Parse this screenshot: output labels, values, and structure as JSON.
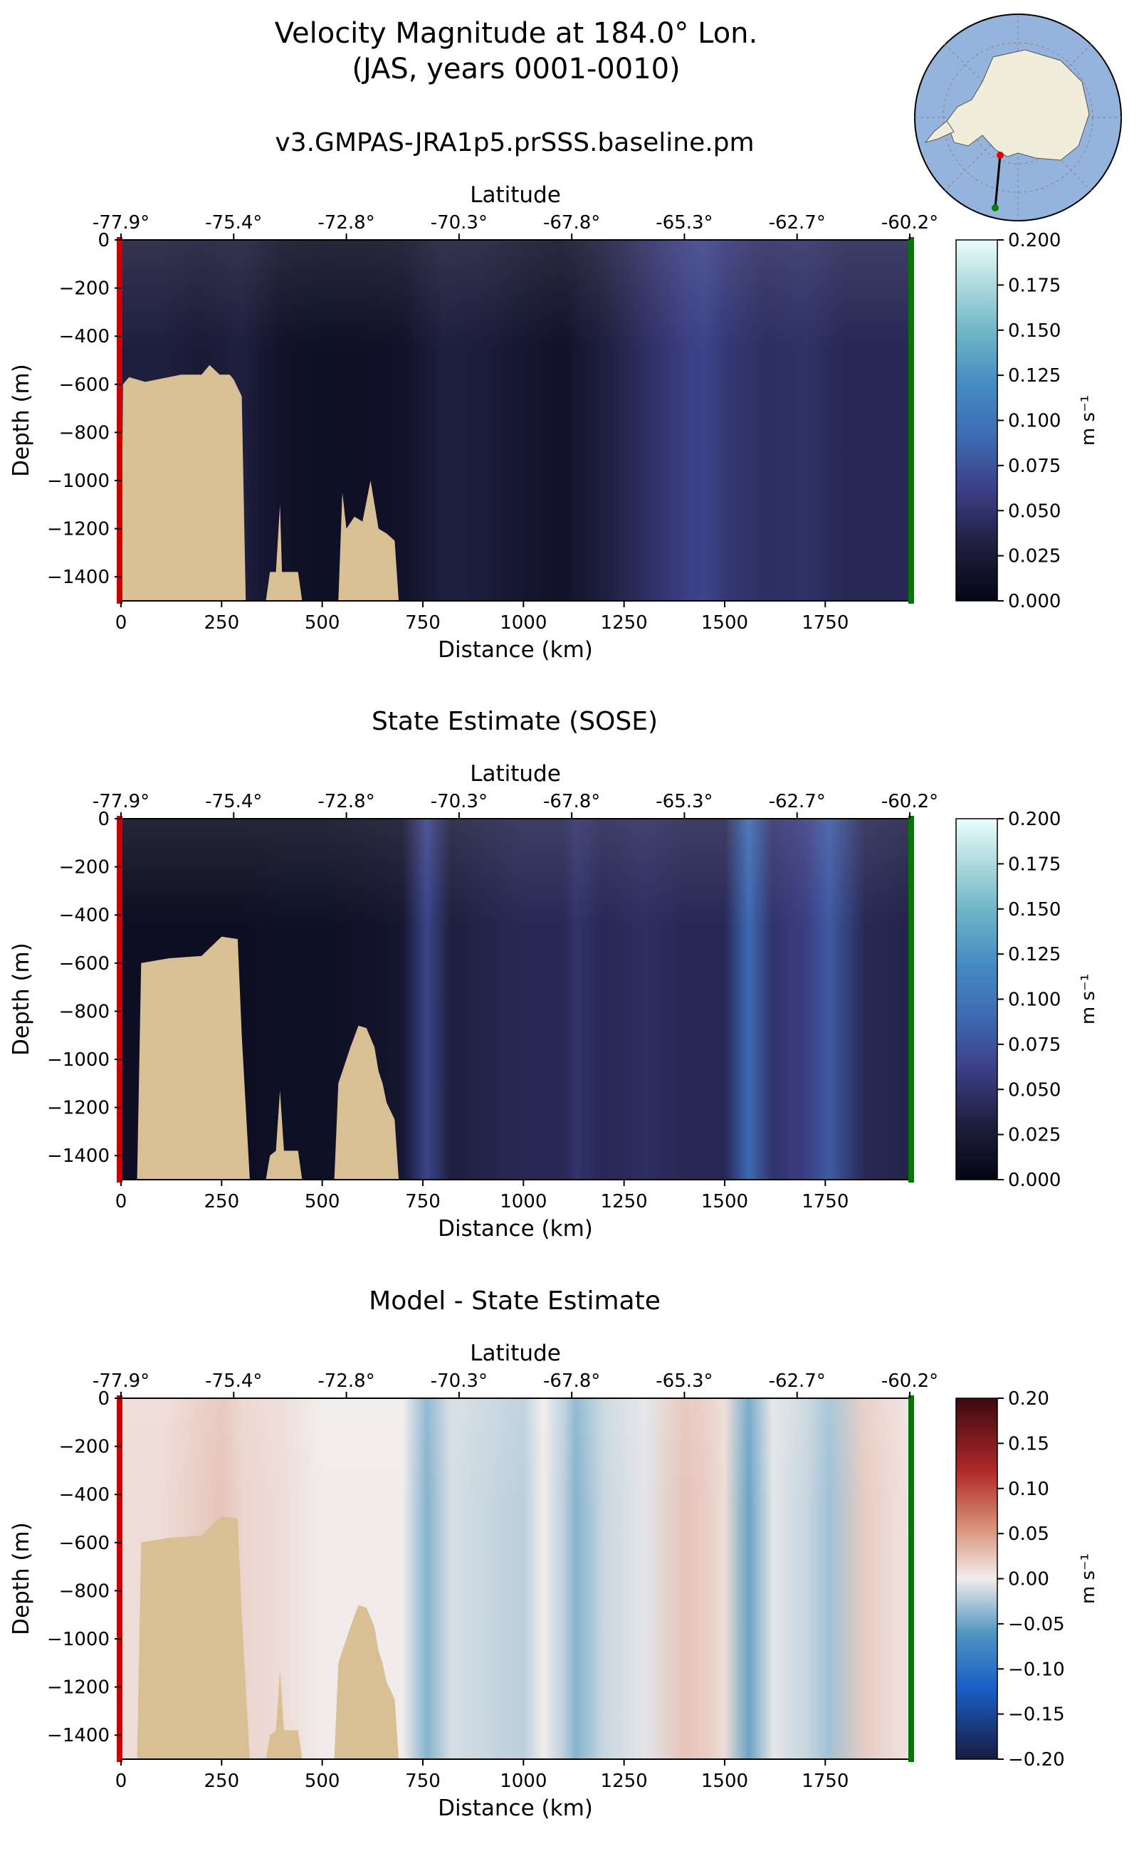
{
  "figure": {
    "title": "Velocity Magnitude at 184.0° Lon.",
    "subtitle": "(JAS, years 0001-0010)",
    "inset_map": {
      "description_icon": "antarctica-map-icon",
      "colors": {
        "ocean": "#95b4dd",
        "land": "#f0eedb",
        "transect": "#000000",
        "start_marker": "#e00000",
        "end_marker": "#008000"
      }
    }
  },
  "chart_data": [
    {
      "type": "heatmap",
      "title": "v3.GMPAS-JRA1p5.prSSS.baseline.pm",
      "xlabel": "Distance (km)",
      "ylabel": "Depth (m)",
      "top_xlabel": "Latitude",
      "xlim": [
        0,
        1960
      ],
      "ylim": [
        -1500,
        0
      ],
      "x_ticks": [
        0,
        250,
        500,
        750,
        1000,
        1250,
        1500,
        1750
      ],
      "y_ticks": [
        0,
        -200,
        -400,
        -600,
        -800,
        -1000,
        -1200,
        -1400
      ],
      "latitude_ticks": [
        "-77.9°",
        "-75.4°",
        "-72.8°",
        "-70.3°",
        "-67.8°",
        "-65.3°",
        "-62.7°",
        "-60.2°"
      ],
      "colormap": "ice",
      "colorbar": {
        "label": "m s⁻¹",
        "vmin": 0.0,
        "vmax": 0.2,
        "ticks": [
          "0.000",
          "0.025",
          "0.050",
          "0.075",
          "0.100",
          "0.125",
          "0.150",
          "0.175",
          "0.200"
        ]
      },
      "velocity_profile": {
        "distance_km": [
          0,
          100,
          200,
          300,
          400,
          500,
          600,
          700,
          800,
          900,
          1000,
          1100,
          1200,
          1300,
          1400,
          1450,
          1500,
          1600,
          1700,
          1800,
          1900,
          1960
        ],
        "magnitude": [
          0.03,
          0.03,
          0.025,
          0.03,
          0.015,
          0.012,
          0.013,
          0.015,
          0.03,
          0.028,
          0.02,
          0.015,
          0.03,
          0.045,
          0.06,
          0.065,
          0.055,
          0.045,
          0.048,
          0.04,
          0.04,
          0.04
        ]
      },
      "bathymetry": {
        "distance_km": [
          0,
          5,
          20,
          60,
          150,
          200,
          220,
          245,
          270,
          280,
          300,
          310,
          360,
          370,
          385,
          395,
          400,
          420,
          440,
          450,
          540,
          550,
          560,
          580,
          600,
          620,
          640,
          660,
          680,
          690
        ],
        "depth_m": [
          -1500,
          -600,
          -570,
          -590,
          -560,
          -560,
          -520,
          -560,
          -560,
          -580,
          -650,
          -1500,
          -1500,
          -1380,
          -1380,
          -1100,
          -1380,
          -1380,
          -1380,
          -1500,
          -1500,
          -1050,
          -1200,
          -1150,
          -1170,
          -1000,
          -1200,
          -1220,
          -1250,
          -1500
        ]
      },
      "section_markers": {
        "start_color": "#cc0000",
        "end_color": "#007700"
      }
    },
    {
      "type": "heatmap",
      "title": "State Estimate (SOSE)",
      "xlabel": "Distance (km)",
      "ylabel": "Depth (m)",
      "top_xlabel": "Latitude",
      "xlim": [
        0,
        1960
      ],
      "ylim": [
        -1500,
        0
      ],
      "x_ticks": [
        0,
        250,
        500,
        750,
        1000,
        1250,
        1500,
        1750
      ],
      "y_ticks": [
        0,
        -200,
        -400,
        -600,
        -800,
        -1000,
        -1200,
        -1400
      ],
      "latitude_ticks": [
        "-77.9°",
        "-75.4°",
        "-72.8°",
        "-70.3°",
        "-67.8°",
        "-65.3°",
        "-62.7°",
        "-60.2°"
      ],
      "colormap": "ice",
      "colorbar": {
        "label": "m s⁻¹",
        "vmin": 0.0,
        "vmax": 0.2,
        "ticks": [
          "0.000",
          "0.025",
          "0.050",
          "0.075",
          "0.100",
          "0.125",
          "0.150",
          "0.175",
          "0.200"
        ]
      },
      "velocity_profile": {
        "distance_km": [
          0,
          100,
          200,
          300,
          400,
          500,
          600,
          700,
          760,
          820,
          900,
          1000,
          1100,
          1130,
          1200,
          1300,
          1400,
          1500,
          1560,
          1620,
          1700,
          1760,
          1850,
          1960
        ],
        "magnitude": [
          0.01,
          0.01,
          0.01,
          0.01,
          0.012,
          0.012,
          0.015,
          0.02,
          0.065,
          0.03,
          0.035,
          0.04,
          0.04,
          0.05,
          0.04,
          0.045,
          0.04,
          0.04,
          0.09,
          0.05,
          0.06,
          0.08,
          0.04,
          0.035
        ]
      },
      "bathymetry": {
        "distance_km": [
          0,
          40,
          50,
          120,
          200,
          250,
          290,
          300,
          320,
          360,
          370,
          385,
          395,
          405,
          420,
          440,
          450,
          530,
          540,
          570,
          590,
          610,
          630,
          640,
          650,
          660,
          680,
          690
        ],
        "depth_m": [
          -1500,
          -1500,
          -600,
          -580,
          -570,
          -490,
          -500,
          -900,
          -1500,
          -1500,
          -1400,
          -1380,
          -1130,
          -1380,
          -1380,
          -1380,
          -1500,
          -1500,
          -1100,
          -950,
          -860,
          -870,
          -950,
          -1050,
          -1100,
          -1180,
          -1250,
          -1500
        ]
      },
      "section_markers": {
        "start_color": "#cc0000",
        "end_color": "#007700"
      }
    },
    {
      "type": "heatmap",
      "title": "Model - State Estimate",
      "xlabel": "Distance (km)",
      "ylabel": "Depth (m)",
      "top_xlabel": "Latitude",
      "xlim": [
        0,
        1960
      ],
      "ylim": [
        -1500,
        0
      ],
      "x_ticks": [
        0,
        250,
        500,
        750,
        1000,
        1250,
        1500,
        1750
      ],
      "y_ticks": [
        0,
        -200,
        -400,
        -600,
        -800,
        -1000,
        -1200,
        -1400
      ],
      "latitude_ticks": [
        "-77.9°",
        "-75.4°",
        "-72.8°",
        "-70.3°",
        "-67.8°",
        "-65.3°",
        "-62.7°",
        "-60.2°"
      ],
      "colormap": "balance",
      "colorbar": {
        "label": "m s⁻¹",
        "vmin": -0.2,
        "vmax": 0.2,
        "ticks": [
          "−0.20",
          "−0.15",
          "−0.10",
          "−0.05",
          "0.00",
          "0.05",
          "0.10",
          "0.15",
          "0.20"
        ]
      },
      "velocity_profile": {
        "distance_km": [
          0,
          100,
          200,
          250,
          300,
          400,
          500,
          600,
          700,
          760,
          820,
          900,
          1000,
          1050,
          1100,
          1130,
          1200,
          1300,
          1400,
          1450,
          1500,
          1560,
          1620,
          1700,
          1760,
          1850,
          1960
        ],
        "magnitude": [
          0.01,
          0.01,
          0.02,
          0.025,
          0.015,
          0.01,
          0.0,
          0.0,
          0.0,
          -0.04,
          -0.01,
          -0.015,
          -0.02,
          0.0,
          -0.02,
          -0.04,
          -0.015,
          -0.005,
          0.025,
          0.02,
          0.01,
          -0.05,
          -0.005,
          -0.015,
          -0.03,
          0.02,
          0.005
        ]
      },
      "bathymetry": {
        "distance_km": [
          0,
          40,
          50,
          120,
          200,
          250,
          290,
          300,
          320,
          360,
          370,
          385,
          395,
          405,
          420,
          440,
          450,
          530,
          540,
          570,
          590,
          610,
          630,
          640,
          650,
          660,
          680,
          690
        ],
        "depth_m": [
          -1500,
          -1500,
          -600,
          -580,
          -570,
          -490,
          -500,
          -900,
          -1500,
          -1500,
          -1400,
          -1380,
          -1130,
          -1380,
          -1380,
          -1380,
          -1500,
          -1500,
          -1100,
          -950,
          -860,
          -870,
          -950,
          -1050,
          -1100,
          -1180,
          -1250,
          -1500
        ]
      },
      "section_markers": {
        "start_color": "#cc0000",
        "end_color": "#007700"
      }
    }
  ]
}
